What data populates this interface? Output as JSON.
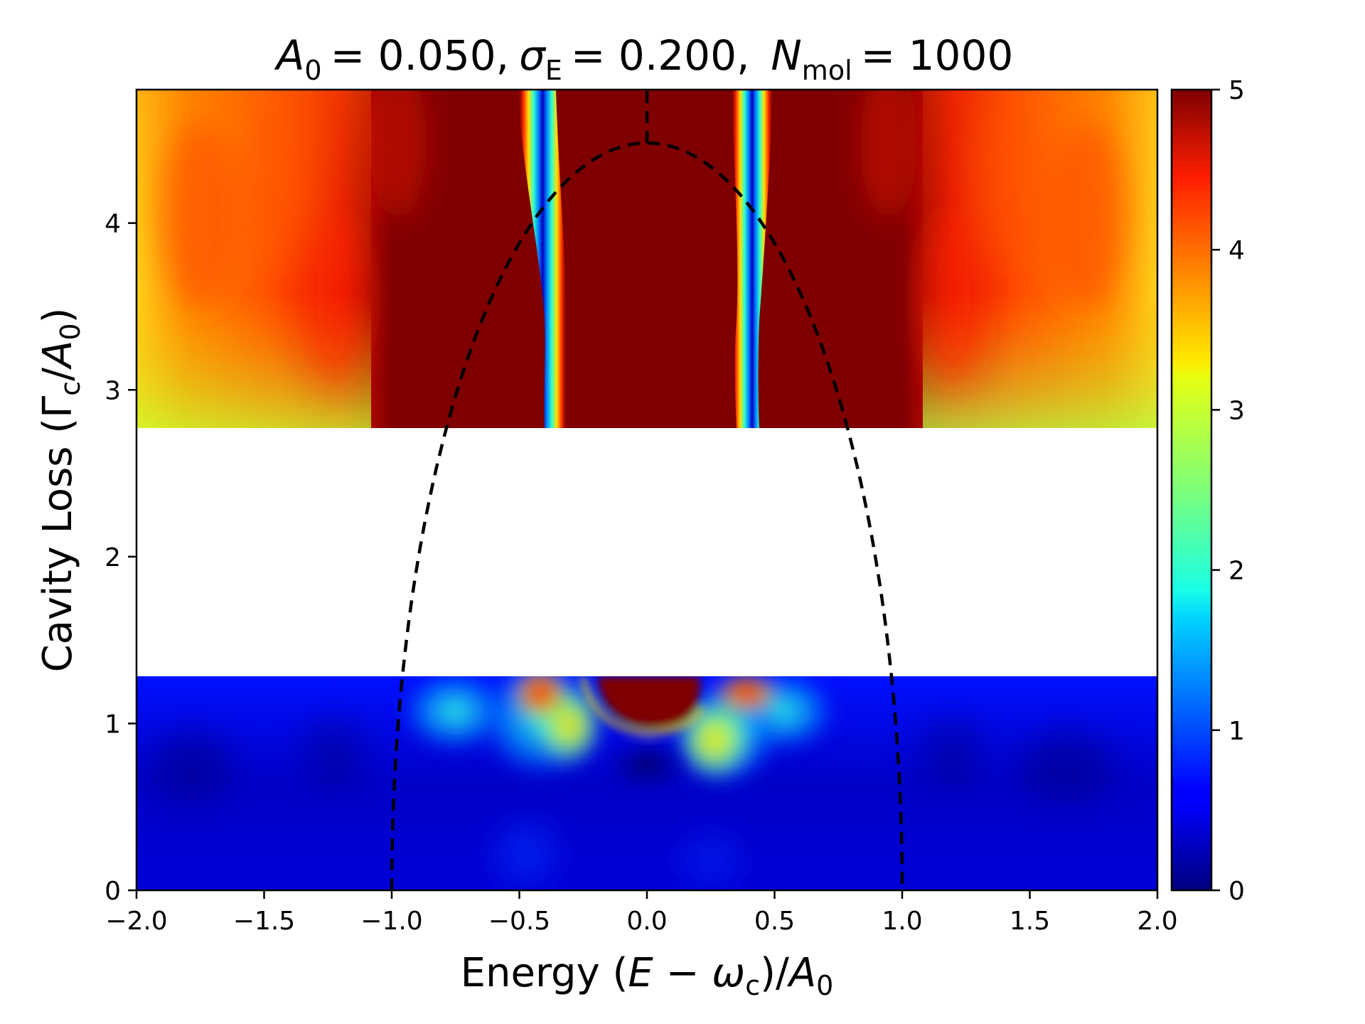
{
  "chart_data": {
    "type": "heatmap",
    "title": {
      "a0_symbol": "A",
      "a0_sub": "0",
      "a0_value": "= 0.050,",
      "sigma_symbol": "σ",
      "sigma_sub": "E",
      "sigma_value": "= 0.200,",
      "n_symbol": "N",
      "n_sub": "mol",
      "n_value": "= 1000"
    },
    "xlabel": {
      "prefix": "Energy (",
      "e_symbol": "E",
      "minus": " − ",
      "omega_symbol": "ω",
      "omega_sub": "c",
      "mid": ")/",
      "a_symbol": "A",
      "a_sub": "0"
    },
    "ylabel": {
      "prefix": "Cavity Loss (",
      "gamma_symbol": "Γ",
      "gamma_sub": "c",
      "slash": "/",
      "a_symbol": "A",
      "a_sub": "0",
      "suffix": ")"
    },
    "xlim": [
      -2.0,
      2.0
    ],
    "ylim": [
      0,
      4.8
    ],
    "xticks": [
      "−2.0",
      "−1.5",
      "−1.0",
      "−0.5",
      "0.0",
      "0.5",
      "1.0",
      "1.5",
      "2.0"
    ],
    "xtick_values": [
      -2.0,
      -1.5,
      -1.0,
      -0.5,
      0.0,
      0.5,
      1.0,
      1.5,
      2.0
    ],
    "yticks": [
      "0",
      "1",
      "2",
      "3",
      "4"
    ],
    "ytick_values": [
      0,
      1,
      2,
      3,
      4
    ],
    "colorbar": {
      "colormap": "jet",
      "range": [
        0,
        5
      ],
      "ticks": [
        "0",
        "1",
        "2",
        "3",
        "4",
        "5"
      ],
      "tick_values": [
        0,
        1,
        2,
        3,
        4,
        5
      ]
    },
    "data_bands": [
      {
        "y_range": [
          0,
          1.28
        ],
        "description": "low loss region, mostly low intensity with bright features near center"
      },
      {
        "y_range": [
          2.77,
          4.8
        ],
        "description": "high loss region, mostly high intensity with two narrow low-intensity ridges"
      }
    ],
    "empty_band": [
      1.28,
      2.77
    ],
    "ridges": [
      {
        "points": [
          [
            -0.48,
            4.8
          ],
          [
            -0.44,
            4.2
          ],
          [
            -0.38,
            3.6
          ],
          [
            -0.37,
            3.2
          ],
          [
            -0.4,
            2.77
          ]
        ]
      },
      {
        "points": [
          [
            0.37,
            4.8
          ],
          [
            0.38,
            4.2
          ],
          [
            0.38,
            3.6
          ],
          [
            0.35,
            3.2
          ],
          [
            0.37,
            2.77
          ]
        ]
      }
    ],
    "dashed_boundary": {
      "style": "dashed",
      "color": "#000000",
      "description": "semi-ellipse E = ±sqrt(1 − (Γc/4.48)^2), apex at (0, 4.48), plus vertical segment at E=0 from apex to top",
      "apex": [
        0.0,
        4.48
      ],
      "base_x": [
        -1.0,
        1.0
      ]
    }
  }
}
